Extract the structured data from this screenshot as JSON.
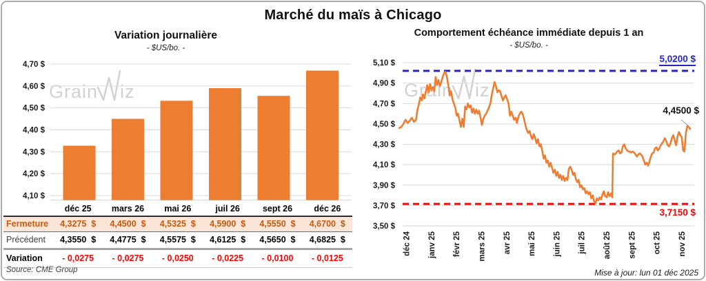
{
  "title": "Marché du maïs à Chicago",
  "source_note": "Source: CME Group",
  "updated_note": "Mise à jour: lun 01 déc 2025",
  "watermark": {
    "prefix": "Grain",
    "suffix": "iz"
  },
  "table": {
    "columns": [
      "déc 25",
      "mars 26",
      "mai 26",
      "juil 26",
      "sept 26",
      "déc 26"
    ],
    "rows": [
      {
        "kind": "ferm",
        "label": "Fermeture",
        "values": [
          "4,3275  $",
          "4,4500  $",
          "4,5325  $",
          "4,5900  $",
          "4,5550  $",
          "4,6700  $"
        ]
      },
      {
        "kind": "prec",
        "label": "Précédent",
        "values": [
          "4,3550  $",
          "4,4775  $",
          "4,5575  $",
          "4,6125  $",
          "4,5650  $",
          "4,6825  $"
        ]
      },
      {
        "kind": "var",
        "label": "Variation",
        "values": [
          "- 0,0275",
          "- 0,0275",
          "- 0,0250",
          "- 0,0225",
          "- 0,0100",
          "- 0,0125"
        ]
      }
    ]
  },
  "chart_data": [
    {
      "type": "bar",
      "title": "Variation journalière",
      "subtitle": "- $US/bo. -",
      "categories": [
        "déc 25",
        "mars 26",
        "mai 26",
        "juil 26",
        "sept 26",
        "déc 26"
      ],
      "values": [
        4.3275,
        4.45,
        4.5325,
        4.59,
        4.555,
        4.67
      ],
      "ylim": [
        4.08,
        4.72
      ],
      "yticks": [
        4.1,
        4.2,
        4.3,
        4.4,
        4.5,
        4.6,
        4.7
      ],
      "ytick_labels": [
        "4,10 $",
        "4,20 $",
        "4,30 $",
        "4,40 $",
        "4,50 $",
        "4,60 $",
        "4,70 $"
      ],
      "bar_color": "#ED7D31",
      "grid_color": "#D9D9D9"
    },
    {
      "type": "line",
      "title": "Comportement échéance immédiate depuis 1 an",
      "subtitle": "- $US/bo. -",
      "x_categories": [
        "déc 24",
        "janv 25",
        "févr 25",
        "mars 25",
        "avr 25",
        "mai 25",
        "juin 25",
        "juil 25",
        "août 25",
        "sept 25",
        "oct 25",
        "nov 25"
      ],
      "ylim": [
        3.5,
        5.1
      ],
      "yticks": [
        3.5,
        3.7,
        3.9,
        4.1,
        4.3,
        4.5,
        4.7,
        4.9,
        5.1
      ],
      "ytick_labels": [
        "3,50 $",
        "3,70 $",
        "3,90 $",
        "4,10 $",
        "4,30 $",
        "4,50 $",
        "4,70 $",
        "4,90 $",
        "5,10 $"
      ],
      "line_color": "#ED7D31",
      "grid_color": "#D9D9D9",
      "ref_lines": [
        {
          "value": 5.02,
          "label": "5,0200 $",
          "color": "#2424C8"
        },
        {
          "value": 3.715,
          "label": "3,7150 $",
          "color": "#FF0000"
        }
      ],
      "last_label": "4,4500 $",
      "last_value": 4.45,
      "points": [
        [
          2,
          4.46
        ],
        [
          5,
          4.47
        ],
        [
          8,
          4.5
        ],
        [
          11,
          4.54
        ],
        [
          14,
          4.51
        ],
        [
          17,
          4.53
        ],
        [
          20,
          4.56
        ],
        [
          23,
          4.52
        ],
        [
          26,
          4.54
        ],
        [
          28,
          4.64
        ],
        [
          30,
          4.69
        ],
        [
          32,
          4.76
        ],
        [
          34,
          4.73
        ],
        [
          36,
          4.79
        ],
        [
          38,
          4.75
        ],
        [
          40,
          4.82
        ],
        [
          42,
          4.88
        ],
        [
          44,
          4.81
        ],
        [
          46,
          4.89
        ],
        [
          48,
          4.83
        ],
        [
          50,
          4.86
        ],
        [
          52,
          4.82
        ],
        [
          54,
          4.96
        ],
        [
          56,
          4.88
        ],
        [
          58,
          4.93
        ],
        [
          60,
          4.87
        ],
        [
          62,
          4.91
        ],
        [
          64,
          4.96
        ],
        [
          66,
          5.0
        ],
        [
          68,
          5.01
        ],
        [
          70,
          4.96
        ],
        [
          72,
          4.88
        ],
        [
          74,
          4.78
        ],
        [
          76,
          4.82
        ],
        [
          78,
          4.74
        ],
        [
          80,
          4.7
        ],
        [
          82,
          4.66
        ],
        [
          84,
          4.58
        ],
        [
          86,
          4.6
        ],
        [
          88,
          4.53
        ],
        [
          90,
          4.47
        ],
        [
          92,
          4.55
        ],
        [
          94,
          4.47
        ],
        [
          96,
          4.67
        ],
        [
          98,
          4.64
        ],
        [
          100,
          4.7
        ],
        [
          102,
          4.66
        ],
        [
          104,
          4.68
        ],
        [
          106,
          4.61
        ],
        [
          108,
          4.65
        ],
        [
          110,
          4.6
        ],
        [
          112,
          4.64
        ],
        [
          114,
          4.6
        ],
        [
          116,
          4.63
        ],
        [
          118,
          4.56
        ],
        [
          120,
          4.49
        ],
        [
          122,
          4.55
        ],
        [
          124,
          4.58
        ],
        [
          126,
          4.6
        ],
        [
          128,
          4.63
        ],
        [
          130,
          4.66
        ],
        [
          132,
          4.7
        ],
        [
          134,
          4.78
        ],
        [
          136,
          4.85
        ],
        [
          138,
          4.91
        ],
        [
          140,
          4.87
        ],
        [
          142,
          4.81
        ],
        [
          144,
          4.83
        ],
        [
          146,
          4.82
        ],
        [
          148,
          4.77
        ],
        [
          150,
          4.73
        ],
        [
          152,
          4.76
        ],
        [
          154,
          4.78
        ],
        [
          156,
          4.74
        ],
        [
          158,
          4.7
        ],
        [
          160,
          4.58
        ],
        [
          162,
          4.62
        ],
        [
          164,
          4.58
        ],
        [
          166,
          4.54
        ],
        [
          168,
          4.56
        ],
        [
          170,
          4.51
        ],
        [
          172,
          4.57
        ],
        [
          174,
          4.6
        ],
        [
          176,
          4.62
        ],
        [
          178,
          4.6
        ],
        [
          180,
          4.55
        ],
        [
          182,
          4.49
        ],
        [
          184,
          4.44
        ],
        [
          186,
          4.41
        ],
        [
          188,
          4.43
        ],
        [
          190,
          4.38
        ],
        [
          192,
          4.35
        ],
        [
          194,
          4.4
        ],
        [
          196,
          4.36
        ],
        [
          198,
          4.31
        ],
        [
          200,
          4.35
        ],
        [
          202,
          4.28
        ],
        [
          204,
          4.3
        ],
        [
          206,
          4.24
        ],
        [
          208,
          4.16
        ],
        [
          210,
          4.19
        ],
        [
          212,
          4.12
        ],
        [
          214,
          4.14
        ],
        [
          216,
          4.08
        ],
        [
          218,
          4.12
        ],
        [
          220,
          4.07
        ],
        [
          222,
          4.02
        ],
        [
          224,
          4.05
        ],
        [
          226,
          3.99
        ],
        [
          228,
          4.03
        ],
        [
          230,
          3.97
        ],
        [
          232,
          4.0
        ],
        [
          234,
          3.95
        ],
        [
          236,
          3.99
        ],
        [
          238,
          3.94
        ],
        [
          240,
          3.97
        ],
        [
          242,
          3.95
        ],
        [
          244,
          4.06
        ],
        [
          246,
          4.08
        ],
        [
          248,
          4.05
        ],
        [
          250,
          4.0
        ],
        [
          252,
          4.02
        ],
        [
          254,
          3.96
        ],
        [
          256,
          3.93
        ],
        [
          258,
          3.95
        ],
        [
          260,
          3.88
        ],
        [
          262,
          3.9
        ],
        [
          264,
          3.86
        ],
        [
          266,
          3.87
        ],
        [
          268,
          3.82
        ],
        [
          270,
          3.84
        ],
        [
          272,
          3.81
        ],
        [
          274,
          3.83
        ],
        [
          276,
          3.77
        ],
        [
          278,
          3.8
        ],
        [
          280,
          3.74
        ],
        [
          282,
          3.72
        ],
        [
          284,
          3.77
        ],
        [
          286,
          3.75
        ],
        [
          288,
          3.78
        ],
        [
          290,
          3.76
        ],
        [
          292,
          3.81
        ],
        [
          294,
          3.84
        ],
        [
          296,
          3.79
        ],
        [
          298,
          3.78
        ],
        [
          300,
          3.83
        ],
        [
          302,
          3.79
        ],
        [
          304,
          3.82
        ],
        [
          306,
          3.78
        ],
        [
          307,
          4.21
        ],
        [
          309,
          4.2
        ],
        [
          311,
          4.21
        ],
        [
          313,
          4.23
        ],
        [
          315,
          4.24
        ],
        [
          317,
          4.21
        ],
        [
          319,
          4.22
        ],
        [
          321,
          4.28
        ],
        [
          323,
          4.3
        ],
        [
          325,
          4.26
        ],
        [
          327,
          4.24
        ],
        [
          329,
          4.23
        ],
        [
          331,
          4.23
        ],
        [
          333,
          4.22
        ],
        [
          335,
          4.23
        ],
        [
          337,
          4.22
        ],
        [
          339,
          4.2
        ],
        [
          341,
          4.18
        ],
        [
          343,
          4.2
        ],
        [
          345,
          4.21
        ],
        [
          347,
          4.2
        ],
        [
          349,
          4.18
        ],
        [
          351,
          4.14
        ],
        [
          353,
          4.1
        ],
        [
          355,
          4.12
        ],
        [
          357,
          4.09
        ],
        [
          359,
          4.13
        ],
        [
          361,
          4.18
        ],
        [
          363,
          4.21
        ],
        [
          365,
          4.22
        ],
        [
          367,
          4.26
        ],
        [
          369,
          4.27
        ],
        [
          371,
          4.24
        ],
        [
          373,
          4.26
        ],
        [
          375,
          4.29
        ],
        [
          377,
          4.31
        ],
        [
          379,
          4.33
        ],
        [
          381,
          4.36
        ],
        [
          383,
          4.33
        ],
        [
          385,
          4.29
        ],
        [
          387,
          4.28
        ],
        [
          389,
          4.31
        ],
        [
          391,
          4.36
        ],
        [
          393,
          4.39
        ],
        [
          395,
          4.34
        ],
        [
          397,
          4.29
        ],
        [
          399,
          4.37
        ],
        [
          401,
          4.42
        ],
        [
          403,
          4.39
        ],
        [
          405,
          4.37
        ],
        [
          407,
          4.24
        ],
        [
          409,
          4.23
        ],
        [
          411,
          4.41
        ],
        [
          413,
          4.48
        ],
        [
          415,
          4.47
        ],
        [
          417,
          4.45
        ]
      ]
    }
  ]
}
